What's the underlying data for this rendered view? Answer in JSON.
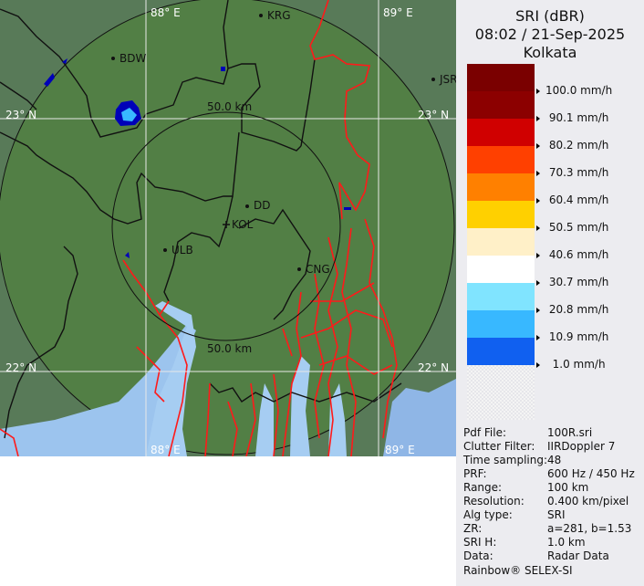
{
  "map": {
    "grid_labels": {
      "lon_left": "88° E",
      "lon_right": "89° E",
      "lat_top": "23° N",
      "lat_bottom": "22° N"
    },
    "range_ring_labels": {
      "top": "50.0 km",
      "bottom": "50.0 km"
    },
    "cities": [
      {
        "name": "KRG"
      },
      {
        "name": "BDW"
      },
      {
        "name": "JSR"
      },
      {
        "name": "DD"
      },
      {
        "name": "KOL"
      },
      {
        "name": "ULB"
      },
      {
        "name": "CNG"
      }
    ],
    "colors": {
      "land": "#527f45",
      "outside_range": "#587a58",
      "water": "#a6cdf2",
      "river": "#ff1a1a",
      "boundary": "#000000"
    }
  },
  "panel": {
    "product": "SRI (dBR)",
    "datetime": "08:02 / 21-Sep-2025",
    "site": "Kolkata",
    "legend": [
      {
        "label": "100.0 mm/h",
        "color": "#8c0000"
      },
      {
        "label": " 90.1 mm/h",
        "color": "#d00000"
      },
      {
        "label": " 80.2 mm/h",
        "color": "#ff4000"
      },
      {
        "label": " 70.3 mm/h",
        "color": "#ff8000"
      },
      {
        "label": " 60.4 mm/h",
        "color": "#ffd000"
      },
      {
        "label": " 50.5 mm/h",
        "color": "#fff0c8"
      },
      {
        "label": " 40.6 mm/h",
        "color": "#ffffff"
      },
      {
        "label": " 30.7 mm/h",
        "color": "#80e4ff"
      },
      {
        "label": " 20.8 mm/h",
        "color": "#38b8ff"
      },
      {
        "label": " 10.9 mm/h",
        "color": "#1060f0"
      },
      {
        "label": "  1.0 mm/h",
        "color": "#0000b8"
      }
    ],
    "top_color": "#7a0000",
    "info": [
      {
        "key": "Pdf File:",
        "value": "100R.sri"
      },
      {
        "key": "Clutter Filter:",
        "value": "IIRDoppler 7"
      },
      {
        "key": "Time sampling:",
        "value": "48"
      },
      {
        "key": "PRF:",
        "value": "600 Hz / 450 Hz"
      },
      {
        "key": "Range:",
        "value": "100 km"
      },
      {
        "key": "Resolution:",
        "value": "0.400 km/pixel"
      },
      {
        "key": "Alg type:",
        "value": "SRI"
      },
      {
        "key": "ZR:",
        "value": "a=281, b=1.53"
      },
      {
        "key": "SRI H:",
        "value": "1.0 km"
      },
      {
        "key": "Data:",
        "value": "Radar Data"
      }
    ],
    "footer": "Rainbow® SELEX-SI"
  }
}
